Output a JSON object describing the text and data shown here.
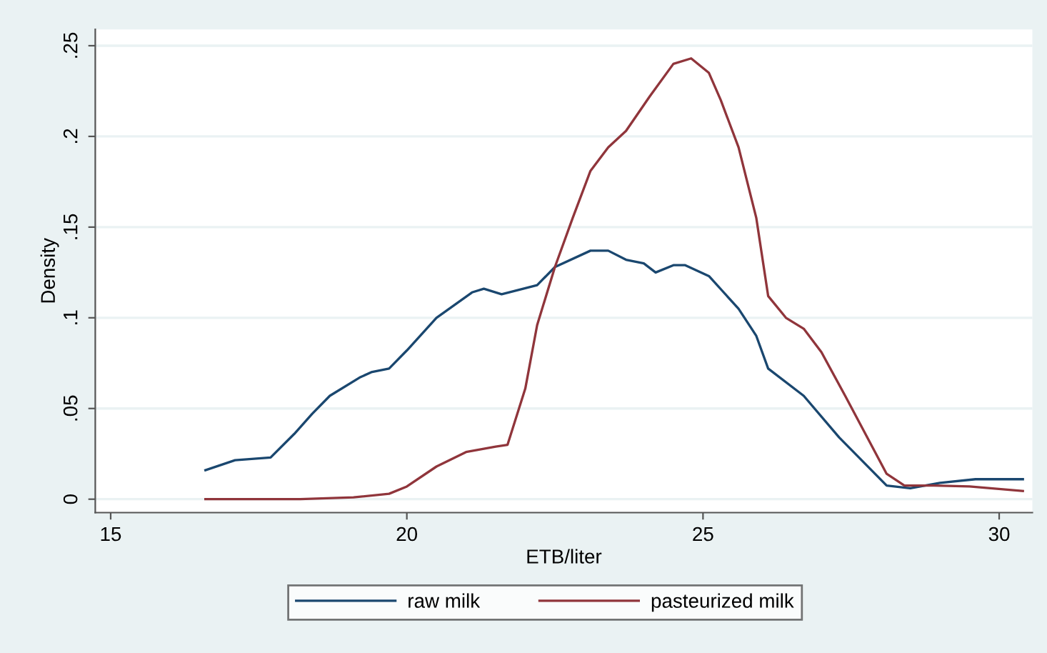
{
  "chart_data": {
    "type": "line",
    "xlabel": "ETB/liter",
    "ylabel": "Density",
    "xlim": [
      14.74,
      30.56
    ],
    "ylim": [
      -0.0074,
      0.259
    ],
    "xticks": [
      15,
      20,
      25,
      30
    ],
    "yticks": [
      {
        "value": 0,
        "label": "0"
      },
      {
        "value": 0.05,
        "label": ".05"
      },
      {
        "value": 0.1,
        "label": ".1"
      },
      {
        "value": 0.15,
        "label": ".15"
      },
      {
        "value": 0.2,
        "label": ".2"
      },
      {
        "value": 0.25,
        "label": ".25"
      }
    ],
    "grid": "y",
    "legend": "bottom",
    "marker": "none",
    "line_style": "solid",
    "series": [
      {
        "name": "raw milk",
        "color": "#1a476f",
        "x": [
          16.6,
          17.1,
          17.7,
          18.1,
          18.4,
          18.7,
          19.2,
          19.4,
          19.7,
          20.0,
          20.5,
          21.1,
          21.3,
          21.6,
          22.2,
          22.5,
          23.1,
          23.4,
          23.7,
          24.0,
          24.2,
          24.5,
          24.7,
          25.1,
          25.6,
          25.9,
          26.1,
          26.7,
          27.3,
          28.1,
          28.5,
          29.0,
          29.6,
          30.4
        ],
        "values": [
          0.016,
          0.0215,
          0.023,
          0.036,
          0.047,
          0.057,
          0.067,
          0.07,
          0.072,
          0.082,
          0.1,
          0.114,
          0.116,
          0.113,
          0.118,
          0.128,
          0.137,
          0.137,
          0.132,
          0.13,
          0.125,
          0.129,
          0.129,
          0.123,
          0.105,
          0.09,
          0.072,
          0.057,
          0.034,
          0.0075,
          0.006,
          0.009,
          0.011,
          0.011
        ]
      },
      {
        "name": "pasteurized milk",
        "color": "#90353b",
        "x": [
          16.6,
          18.2,
          19.1,
          19.7,
          20.0,
          20.5,
          21.0,
          21.5,
          21.7,
          22.0,
          22.2,
          22.5,
          22.8,
          23.1,
          23.4,
          23.7,
          24.1,
          24.5,
          24.8,
          25.1,
          25.3,
          25.6,
          25.9,
          26.1,
          26.4,
          26.7,
          27.0,
          27.4,
          28.1,
          28.4,
          28.9,
          29.5,
          30.4
        ],
        "values": [
          0,
          0,
          0.001,
          0.003,
          0.007,
          0.018,
          0.026,
          0.029,
          0.03,
          0.061,
          0.096,
          0.128,
          0.155,
          0.181,
          0.194,
          0.203,
          0.222,
          0.24,
          0.243,
          0.235,
          0.22,
          0.194,
          0.155,
          0.112,
          0.1,
          0.094,
          0.081,
          0.057,
          0.014,
          0.0075,
          0.0075,
          0.007,
          0.0045
        ]
      }
    ]
  }
}
